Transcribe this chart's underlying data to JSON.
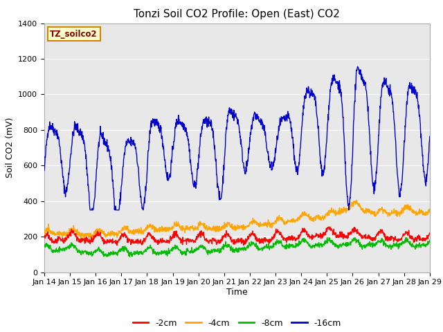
{
  "title": "Tonzi Soil CO2 Profile: Open (East) CO2",
  "xlabel": "Time",
  "ylabel": "Soil CO2 (mV)",
  "ylim": [
    0,
    1400
  ],
  "yticks": [
    0,
    200,
    400,
    600,
    800,
    1000,
    1200,
    1400
  ],
  "xtick_labels": [
    "Jan 14",
    "Jan 15",
    "Jan 16",
    "Jan 17",
    "Jan 18",
    "Jan 19",
    "Jan 20",
    "Jan 21",
    "Jan 22",
    "Jan 23",
    "Jan 24",
    "Jan 25",
    "Jan 26",
    "Jan 27",
    "Jan 28",
    "Jan 29"
  ],
  "legend_labels": [
    "-2cm",
    "-4cm",
    "-8cm",
    "-16cm"
  ],
  "line_colors": [
    "#ff0000",
    "#ffa500",
    "#00bb00",
    "#0000cc"
  ],
  "plot_bg": "#e8e8e8",
  "label_box_color": "#ffffcc",
  "label_box_edge": "#cc8800",
  "label_text": "TZ_soilco2",
  "title_fontsize": 11,
  "axis_fontsize": 9,
  "tick_fontsize": 8
}
